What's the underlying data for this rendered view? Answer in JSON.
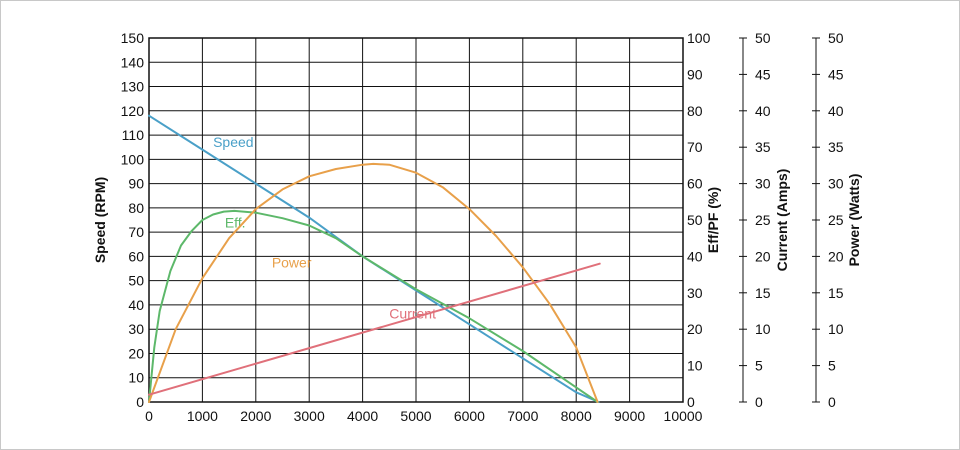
{
  "chart_data": {
    "type": "line",
    "x": {
      "range": [
        0,
        10000
      ],
      "ticks": [
        "0",
        "1000",
        "2000",
        "3000",
        "4000",
        "5000",
        "6000",
        "7000",
        "8000",
        "9000",
        "10000"
      ]
    },
    "grid": true,
    "axes": {
      "speed": {
        "label": "Speed (RPM)",
        "range": [
          0,
          150
        ],
        "ticks": [
          "0",
          "10",
          "20",
          "30",
          "40",
          "50",
          "60",
          "70",
          "80",
          "90",
          "100",
          "110",
          "120",
          "130",
          "140",
          "150"
        ]
      },
      "eff_pf": {
        "label": "Eff/PF (%)",
        "range": [
          0,
          100
        ],
        "ticks": [
          "0",
          "10",
          "20",
          "30",
          "40",
          "50",
          "60",
          "70",
          "80",
          "90",
          "100"
        ]
      },
      "current": {
        "label": "Current (Amps)",
        "range": [
          0,
          50
        ],
        "ticks": [
          "0",
          "5",
          "10",
          "15",
          "20",
          "25",
          "30",
          "35",
          "40",
          "45",
          "50"
        ]
      },
      "power": {
        "label": "Power (Watts)",
        "range": [
          0,
          50
        ],
        "ticks": [
          "0",
          "5",
          "10",
          "15",
          "20",
          "25",
          "30",
          "35",
          "40",
          "45",
          "50"
        ]
      }
    },
    "series": [
      {
        "name": "Speed",
        "axis": "speed",
        "color": "#4aa0c8",
        "x": [
          0,
          1000,
          2000,
          3000,
          4000,
          5000,
          6000,
          7000,
          8000,
          8420
        ],
        "y": [
          118,
          104,
          90,
          76,
          60,
          46,
          32,
          18,
          4,
          0
        ]
      },
      {
        "name": "Eff.",
        "axis": "eff_pf",
        "color": "#5db86a",
        "x": [
          0,
          100,
          200,
          400,
          600,
          800,
          1000,
          1200,
          1400,
          1600,
          2000,
          2500,
          3000,
          3500,
          4000,
          5000,
          6000,
          7000,
          8000,
          8400
        ],
        "y": [
          0,
          15,
          25,
          36,
          43,
          47,
          50,
          51.5,
          52.3,
          52.5,
          52,
          50.5,
          48.5,
          45,
          40,
          31,
          23,
          14,
          4,
          0
        ]
      },
      {
        "name": "Power",
        "axis": "power",
        "color": "#e8a04a",
        "x": [
          0,
          500,
          1000,
          1500,
          2000,
          2500,
          3000,
          3500,
          4000,
          4200,
          4500,
          5000,
          5500,
          6000,
          6500,
          7000,
          7500,
          8000,
          8400
        ],
        "y": [
          0,
          10,
          17,
          22.5,
          26.5,
          29.2,
          31,
          32,
          32.6,
          32.7,
          32.6,
          31.5,
          29.5,
          26.5,
          22.8,
          18.5,
          13.5,
          7.5,
          0
        ]
      },
      {
        "name": "Current",
        "axis": "current",
        "color": "#e0707a",
        "x": [
          0,
          8440
        ],
        "y": [
          1,
          19
        ]
      }
    ]
  }
}
